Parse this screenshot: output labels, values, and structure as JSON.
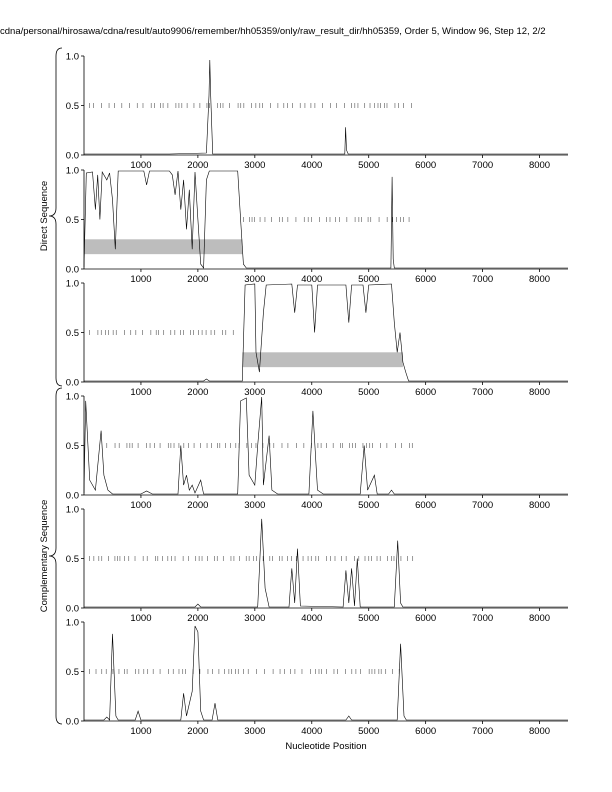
{
  "header": "cdna/personal/hirosawa/cdna/result/auto9906/remember/hh05359/only/raw_result_dir/hh05359, Order 5, Window 96, Step 12, 2/2",
  "xlabel": "Nucleotide Position",
  "groups": [
    "Direct Sequence",
    "Complementary Sequence"
  ],
  "chart_data": {
    "type": "line",
    "xlim": [
      0,
      8500
    ],
    "ylim": [
      0.0,
      1.0
    ],
    "x_ticks": [
      1000,
      2000,
      3000,
      4000,
      5000,
      6000,
      7000,
      8000
    ],
    "y_ticks": [
      "0.0",
      "0.5",
      "1.0"
    ],
    "panels": [
      {
        "group": "Direct Sequence",
        "series": [
          [
            0,
            0.01
          ],
          [
            1500,
            0.01
          ],
          [
            2150,
            0.02
          ],
          [
            2195,
            0.6
          ],
          [
            2210,
            0.96
          ],
          [
            2225,
            0.6
          ],
          [
            2260,
            0.01
          ],
          [
            4580,
            0.01
          ],
          [
            4595,
            0.28
          ],
          [
            4610,
            0.05
          ],
          [
            4640,
            0.01
          ],
          [
            8500,
            0.01
          ]
        ],
        "ticks_range": [
          100,
          5800
        ],
        "boxes": []
      },
      {
        "group": "Direct Sequence",
        "series": [
          [
            0,
            0.02
          ],
          [
            40,
            0.97
          ],
          [
            150,
            0.98
          ],
          [
            200,
            0.6
          ],
          [
            240,
            0.95
          ],
          [
            280,
            0.5
          ],
          [
            320,
            0.98
          ],
          [
            400,
            0.9
          ],
          [
            450,
            0.97
          ],
          [
            500,
            0.7
          ],
          [
            550,
            0.2
          ],
          [
            600,
            0.99
          ],
          [
            900,
            0.99
          ],
          [
            1050,
            0.99
          ],
          [
            1100,
            0.85
          ],
          [
            1150,
            0.99
          ],
          [
            1500,
            0.99
          ],
          [
            1550,
            0.95
          ],
          [
            1600,
            0.75
          ],
          [
            1650,
            0.99
          ],
          [
            1700,
            0.6
          ],
          [
            1750,
            0.9
          ],
          [
            1800,
            0.4
          ],
          [
            1850,
            0.8
          ],
          [
            1900,
            0.2
          ],
          [
            1950,
            0.98
          ],
          [
            2000,
            0.5
          ],
          [
            2050,
            0.05
          ],
          [
            2100,
            0.01
          ],
          [
            2150,
            0.9
          ],
          [
            2200,
            0.99
          ],
          [
            2700,
            0.99
          ],
          [
            2750,
            0.5
          ],
          [
            2800,
            0.05
          ],
          [
            2850,
            0.01
          ],
          [
            5390,
            0.01
          ],
          [
            5410,
            0.93
          ],
          [
            5430,
            0.1
          ],
          [
            5450,
            0.01
          ],
          [
            8500,
            0.01
          ]
        ],
        "ticks_range": [
          2800,
          5800
        ],
        "boxes": [
          [
            0,
            2780
          ]
        ]
      },
      {
        "group": "Direct Sequence",
        "series": [
          [
            0,
            0.01
          ],
          [
            2100,
            0.01
          ],
          [
            2150,
            0.03
          ],
          [
            2200,
            0.01
          ],
          [
            2780,
            0.01
          ],
          [
            2830,
            0.98
          ],
          [
            3000,
            0.99
          ],
          [
            3020,
            0.3
          ],
          [
            3080,
            0.1
          ],
          [
            3150,
            0.7
          ],
          [
            3200,
            0.98
          ],
          [
            3650,
            0.99
          ],
          [
            3700,
            0.7
          ],
          [
            3750,
            0.98
          ],
          [
            4000,
            0.98
          ],
          [
            4050,
            0.5
          ],
          [
            4100,
            0.98
          ],
          [
            4600,
            0.98
          ],
          [
            4650,
            0.6
          ],
          [
            4700,
            0.98
          ],
          [
            4900,
            0.98
          ],
          [
            4950,
            0.7
          ],
          [
            5000,
            0.98
          ],
          [
            5400,
            0.99
          ],
          [
            5450,
            0.6
          ],
          [
            5500,
            0.3
          ],
          [
            5550,
            0.5
          ],
          [
            5600,
            0.2
          ],
          [
            5650,
            0.1
          ],
          [
            5700,
            0.01
          ],
          [
            8500,
            0.01
          ]
        ],
        "ticks_range": [
          100,
          2700
        ],
        "boxes": [
          [
            2780,
            5600
          ]
        ]
      },
      {
        "group": "Complementary Sequence",
        "series": [
          [
            0,
            0.02
          ],
          [
            30,
            0.95
          ],
          [
            100,
            0.15
          ],
          [
            200,
            0.05
          ],
          [
            300,
            0.65
          ],
          [
            350,
            0.2
          ],
          [
            420,
            0.05
          ],
          [
            500,
            0.01
          ],
          [
            1000,
            0.01
          ],
          [
            1100,
            0.04
          ],
          [
            1200,
            0.01
          ],
          [
            1650,
            0.01
          ],
          [
            1700,
            0.5
          ],
          [
            1750,
            0.1
          ],
          [
            1800,
            0.2
          ],
          [
            1850,
            0.05
          ],
          [
            1900,
            0.1
          ],
          [
            1950,
            0.02
          ],
          [
            2050,
            0.15
          ],
          [
            2100,
            0.01
          ],
          [
            2700,
            0.01
          ],
          [
            2750,
            0.95
          ],
          [
            2850,
            0.98
          ],
          [
            2900,
            0.2
          ],
          [
            3000,
            0.1
          ],
          [
            3050,
            0.5
          ],
          [
            3120,
            0.99
          ],
          [
            3150,
            0.1
          ],
          [
            3250,
            0.6
          ],
          [
            3300,
            0.05
          ],
          [
            3400,
            0.01
          ],
          [
            3950,
            0.01
          ],
          [
            4020,
            0.85
          ],
          [
            4100,
            0.05
          ],
          [
            4200,
            0.01
          ],
          [
            4850,
            0.01
          ],
          [
            4920,
            0.5
          ],
          [
            4980,
            0.05
          ],
          [
            5100,
            0.2
          ],
          [
            5150,
            0.01
          ],
          [
            5350,
            0.01
          ],
          [
            5400,
            0.05
          ],
          [
            5450,
            0.01
          ],
          [
            8500,
            0.01
          ]
        ],
        "ticks_range": [
          400,
          5800
        ],
        "boxes": []
      },
      {
        "group": "Complementary Sequence",
        "series": [
          [
            0,
            0.01
          ],
          [
            1950,
            0.01
          ],
          [
            2000,
            0.04
          ],
          [
            2050,
            0.01
          ],
          [
            3050,
            0.01
          ],
          [
            3120,
            0.9
          ],
          [
            3180,
            0.2
          ],
          [
            3250,
            0.01
          ],
          [
            3600,
            0.01
          ],
          [
            3650,
            0.4
          ],
          [
            3700,
            0.05
          ],
          [
            3750,
            0.6
          ],
          [
            3800,
            0.02
          ],
          [
            4550,
            0.01
          ],
          [
            4600,
            0.38
          ],
          [
            4650,
            0.05
          ],
          [
            4700,
            0.4
          ],
          [
            4750,
            0.02
          ],
          [
            4800,
            0.5
          ],
          [
            4850,
            0.01
          ],
          [
            5450,
            0.01
          ],
          [
            5510,
            0.68
          ],
          [
            5560,
            0.05
          ],
          [
            5600,
            0.01
          ],
          [
            8500,
            0.01
          ]
        ],
        "ticks_range": [
          100,
          5800
        ],
        "boxes": []
      },
      {
        "group": "Complementary Sequence",
        "series": [
          [
            0,
            0.01
          ],
          [
            350,
            0.01
          ],
          [
            400,
            0.04
          ],
          [
            450,
            0.01
          ],
          [
            500,
            0.88
          ],
          [
            560,
            0.05
          ],
          [
            600,
            0.01
          ],
          [
            900,
            0.01
          ],
          [
            950,
            0.1
          ],
          [
            1000,
            0.01
          ],
          [
            1700,
            0.01
          ],
          [
            1750,
            0.28
          ],
          [
            1800,
            0.05
          ],
          [
            1900,
            0.3
          ],
          [
            1950,
            0.96
          ],
          [
            2000,
            0.9
          ],
          [
            2050,
            0.1
          ],
          [
            2100,
            0.01
          ],
          [
            2250,
            0.01
          ],
          [
            2300,
            0.18
          ],
          [
            2350,
            0.01
          ],
          [
            4600,
            0.01
          ],
          [
            4650,
            0.05
          ],
          [
            4700,
            0.01
          ],
          [
            5500,
            0.01
          ],
          [
            5560,
            0.78
          ],
          [
            5620,
            0.05
          ],
          [
            5660,
            0.01
          ],
          [
            8500,
            0.01
          ]
        ],
        "ticks_range": [
          100,
          5600
        ],
        "boxes": []
      }
    ]
  }
}
